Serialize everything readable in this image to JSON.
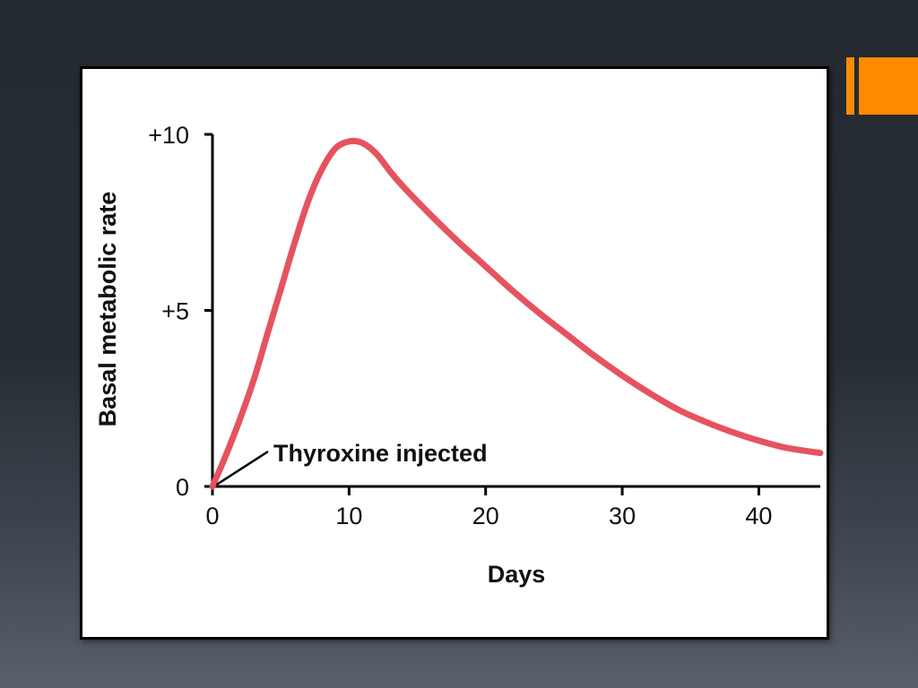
{
  "theme": {
    "accent": "#ff8a00",
    "curve_color": "#e5535f",
    "axis_color": "#000000"
  },
  "chart_data": {
    "type": "line",
    "title": "",
    "xlabel": "Days",
    "ylabel": "Basal metabolic rate",
    "xlim": [
      0,
      44.5
    ],
    "ylim": [
      0,
      10
    ],
    "x_ticks": [
      0,
      10,
      20,
      30,
      40
    ],
    "x_tick_labels": [
      "0",
      "10",
      "20",
      "30",
      "40"
    ],
    "y_ticks": [
      0,
      5,
      10
    ],
    "y_tick_labels": [
      "0",
      "+5",
      "+10"
    ],
    "grid": false,
    "legend": "none",
    "series": [
      {
        "x": [
          0,
          1,
          2,
          3,
          4,
          5,
          6,
          7,
          8,
          9,
          10,
          11,
          12,
          13,
          14,
          16,
          18,
          20,
          22,
          24,
          26,
          28,
          30,
          32,
          34,
          36,
          38,
          40,
          42,
          44.5
        ],
        "y": [
          0,
          0.9,
          1.9,
          3.0,
          4.3,
          5.6,
          6.9,
          8.1,
          9.0,
          9.6,
          9.8,
          9.75,
          9.45,
          8.95,
          8.5,
          7.7,
          6.95,
          6.25,
          5.55,
          4.9,
          4.3,
          3.7,
          3.15,
          2.65,
          2.2,
          1.85,
          1.55,
          1.3,
          1.1,
          0.95
        ]
      }
    ],
    "annotations": [
      {
        "text": "Thyroxine injected",
        "x": 0.3,
        "y": 0
      }
    ]
  }
}
